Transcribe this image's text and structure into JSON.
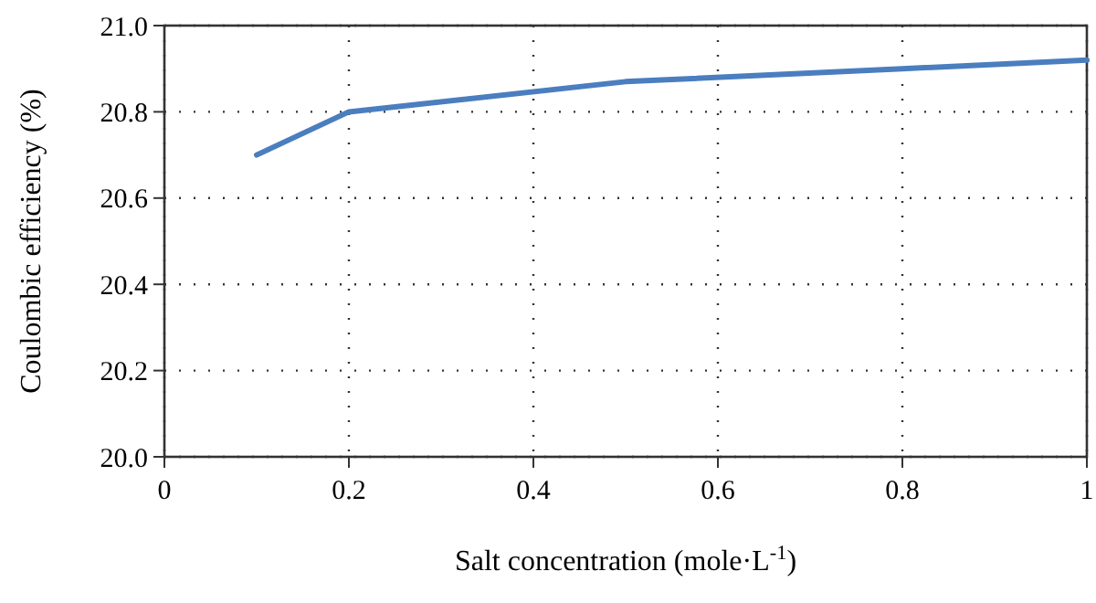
{
  "chart_data": {
    "type": "line",
    "xlabel": "Salt concentration (mole·L$^{-1}$)",
    "ylabel": "Coulombic efficiency (%)",
    "x": [
      0.1,
      0.2,
      0.5,
      0.8,
      1.0
    ],
    "series": [
      {
        "color": "#4a7ebf",
        "values": [
          20.7,
          20.8,
          20.87,
          20.9,
          20.92
        ]
      }
    ],
    "xlim": [
      0,
      1
    ],
    "xticks": [
      0,
      0.2,
      0.4,
      0.6,
      0.8,
      1
    ],
    "ylim": [
      20,
      21
    ],
    "yticks": [
      {
        "value": 20,
        "label": "20.0"
      },
      {
        "value": 20.2,
        "label": "20.2"
      },
      {
        "value": 20.4,
        "label": "20.4"
      },
      {
        "value": 20.6,
        "label": "20.6"
      },
      {
        "value": 20.8,
        "label": "20.8"
      },
      {
        "value": 21,
        "label": "21.0"
      }
    ],
    "grid": true,
    "marker": "none",
    "line_style": "solid"
  }
}
